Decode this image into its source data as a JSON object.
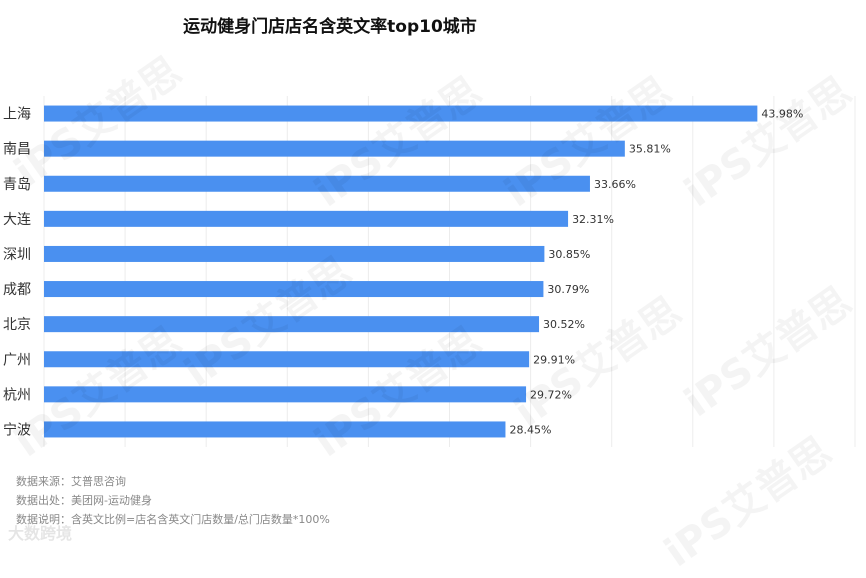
{
  "chart_data": {
    "type": "bar",
    "orientation": "horizontal",
    "title": "运动健身门店店名含英文率top10城市",
    "categories": [
      "上海",
      "南昌",
      "青岛",
      "大连",
      "深圳",
      "成都",
      "北京",
      "广州",
      "杭州",
      "宁波"
    ],
    "values": [
      43.98,
      35.81,
      33.66,
      32.31,
      30.85,
      30.79,
      30.52,
      29.91,
      29.72,
      28.45
    ],
    "data_labels": [
      "43.98%",
      "35.81%",
      "33.66%",
      "32.31%",
      "30.85%",
      "30.79%",
      "30.52%",
      "29.91%",
      "29.72%",
      "28.45%"
    ],
    "xlim": [
      0,
      50
    ],
    "grid": true,
    "bar_color": "#4a90f0"
  },
  "notes": {
    "source": "数据来源：艾普思咨询",
    "origin": "数据出处：美团网-运动健身",
    "explain": "数据说明：含英文比例=店名含英文门店数量/总门店数量*100%"
  },
  "watermark": {
    "text": "iPS艾普思",
    "footer": "大数跨境"
  }
}
